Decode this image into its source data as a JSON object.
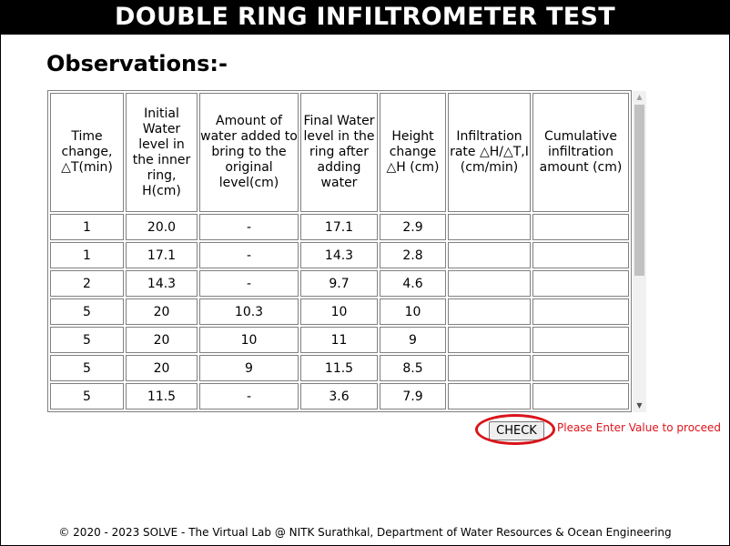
{
  "header": {
    "title": "DOUBLE RING INFILTROMETER TEST"
  },
  "observations_heading": "Observations:-",
  "table": {
    "headers": [
      "Time change, △T(min)",
      "Initial Water level in the inner ring, H(cm)",
      "Amount of water added to bring to the original level(cm)",
      "Final Water level in the ring after adding water",
      "Height change △H (cm)",
      "Infiltration rate △H/△T,I (cm/min)",
      "Cumulative infiltration amount (cm)"
    ],
    "rows": [
      [
        "1",
        "20.0",
        "-",
        "17.1",
        "2.9",
        "",
        ""
      ],
      [
        "1",
        "17.1",
        "-",
        "14.3",
        "2.8",
        "",
        ""
      ],
      [
        "2",
        "14.3",
        "-",
        "9.7",
        "4.6",
        "",
        ""
      ],
      [
        "5",
        "20",
        "10.3",
        "10",
        "10",
        "",
        ""
      ],
      [
        "5",
        "20",
        "10",
        "11",
        "9",
        "",
        ""
      ],
      [
        "5",
        "20",
        "9",
        "11.5",
        "8.5",
        "",
        ""
      ],
      [
        "5",
        "11.5",
        "-",
        "3.6",
        "7.9",
        "",
        ""
      ]
    ]
  },
  "check_button": {
    "label": "CHECK"
  },
  "message": "Please Enter Value to proceed",
  "footer": "© 2020 - 2023 SOLVE - The Virtual Lab @ NITK Surathkal, Department of Water Resources & Ocean Engineering",
  "colors": {
    "header_bg": "#000000",
    "header_text": "#ffffff",
    "message": "#e0121a",
    "highlight_ring": "#d9141a"
  }
}
